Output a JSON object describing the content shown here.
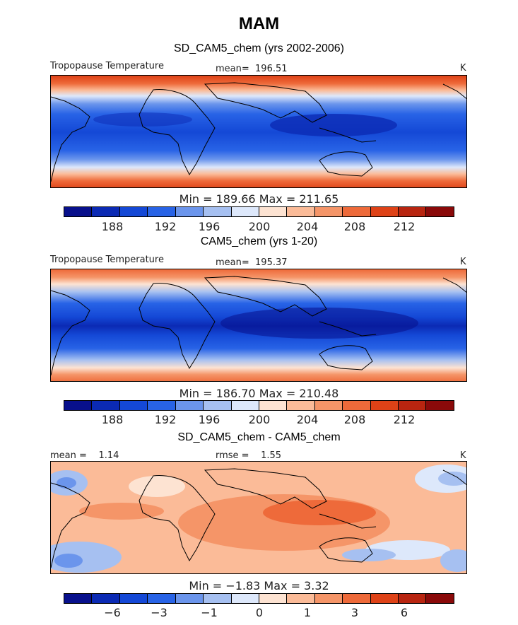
{
  "title": "MAM",
  "colorbar_colors": [
    "#08108c",
    "#0b2ab4",
    "#1448d6",
    "#2863e6",
    "#6b95ec",
    "#a6c0f1",
    "#dde8fb",
    "#fde3d2",
    "#fbbb98",
    "#f59568",
    "#ee6a3a",
    "#de4217",
    "#b82510",
    "#8a0a0a"
  ],
  "chart_data": [
    {
      "type": "heatmap",
      "title": "SD_CAM5_chem (yrs 2002-2006)",
      "field_label": "Tropopause Temperature",
      "mean_label": "mean=",
      "mean": "196.51",
      "units": "K",
      "min_max_text": "Min = 189.66 Max = 211.65",
      "min": 189.66,
      "max": 211.65,
      "colorbar_ticks": [
        "188",
        "192",
        "196",
        "200",
        "204",
        "208",
        "212"
      ]
    },
    {
      "type": "heatmap",
      "title": "CAM5_chem (yrs 1-20)",
      "field_label": "Tropopause Temperature",
      "mean_label": "mean=",
      "mean": "195.37",
      "units": "K",
      "min_max_text": "Min = 186.70 Max = 210.48",
      "min": 186.7,
      "max": 210.48,
      "colorbar_ticks": [
        "188",
        "192",
        "196",
        "200",
        "204",
        "208",
        "212"
      ]
    },
    {
      "type": "heatmap",
      "title": "SD_CAM5_chem - CAM5_chem",
      "mean_label": "mean =",
      "mean": "1.14",
      "rmse_label": "rmse =",
      "rmse": "1.55",
      "units": "K",
      "min_max_text": "Min = −1.83 Max = 3.32",
      "min": -1.83,
      "max": 3.32,
      "colorbar_ticks": [
        "−6",
        "−3",
        "−1",
        "0",
        "1",
        "3",
        "6"
      ]
    }
  ]
}
